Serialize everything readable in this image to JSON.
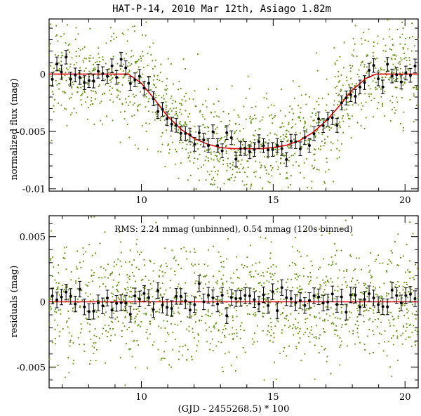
{
  "chart_data": [
    {
      "id": "top",
      "type": "scatter",
      "title": "HAT-P-14, 2010 Mar 12th, Asiago 1.82m",
      "xlabel": "",
      "ylabel": "normalized flux (mag)",
      "xlim": [
        6.5,
        20.5
      ],
      "ylim": [
        -0.0102,
        0.0048
      ],
      "xticks": [
        10,
        15,
        20
      ],
      "xtick_labels": [
        "10",
        "15",
        "20"
      ],
      "yticks": [
        0,
        -0.005,
        -0.01
      ],
      "ytick_labels": [
        "0",
        "-0.005",
        "-0.01"
      ],
      "model": {
        "name": "transit model",
        "color": "#e00000",
        "x": [
          6.5,
          9.5,
          10.0,
          10.5,
          11.0,
          11.5,
          12.0,
          12.5,
          13.0,
          13.5,
          14.0,
          14.5,
          15.0,
          15.5,
          16.0,
          16.5,
          17.0,
          17.5,
          18.0,
          18.5,
          18.9,
          20.5
        ],
        "y": [
          0,
          0,
          -0.0008,
          -0.0022,
          -0.0037,
          -0.0048,
          -0.0056,
          -0.0061,
          -0.0064,
          -0.0065,
          -0.0065,
          -0.0065,
          -0.0064,
          -0.0062,
          -0.0058,
          -0.0051,
          -0.0041,
          -0.0028,
          -0.0014,
          -0.0004,
          0,
          0
        ]
      },
      "series": [
        {
          "name": "unbinned",
          "color": "#5a8a00",
          "count": 1300,
          "scatter": 0.00224
        },
        {
          "name": "120s binned",
          "color": "#000000",
          "count": 80,
          "scatter": 0.00054,
          "errorbar": 0.0006
        }
      ]
    },
    {
      "id": "bottom",
      "type": "scatter",
      "title": "",
      "xlabel": "(GJD - 2455268.5) * 100",
      "ylabel": "residuals (mag)",
      "annotation": "RMS: 2.24 mmag (unbinned), 0.54 mmag (120s binned)",
      "xlim": [
        6.5,
        20.5
      ],
      "ylim": [
        -0.0066,
        0.0066
      ],
      "xticks": [
        10,
        15,
        20
      ],
      "xtick_labels": [
        "10",
        "15",
        "20"
      ],
      "yticks": [
        0.005,
        0,
        -0.005
      ],
      "ytick_labels": [
        "0.005",
        "0",
        "-0.005"
      ],
      "model": {
        "name": "zero line",
        "color": "#e00000",
        "x": [
          6.5,
          20.5
        ],
        "y": [
          0,
          0
        ]
      },
      "series": [
        {
          "name": "unbinned",
          "color": "#5a8a00",
          "count": 1300,
          "scatter": 0.00224
        },
        {
          "name": "120s binned",
          "color": "#000000",
          "count": 80,
          "scatter": 0.00054,
          "errorbar": 0.0006
        }
      ]
    }
  ]
}
